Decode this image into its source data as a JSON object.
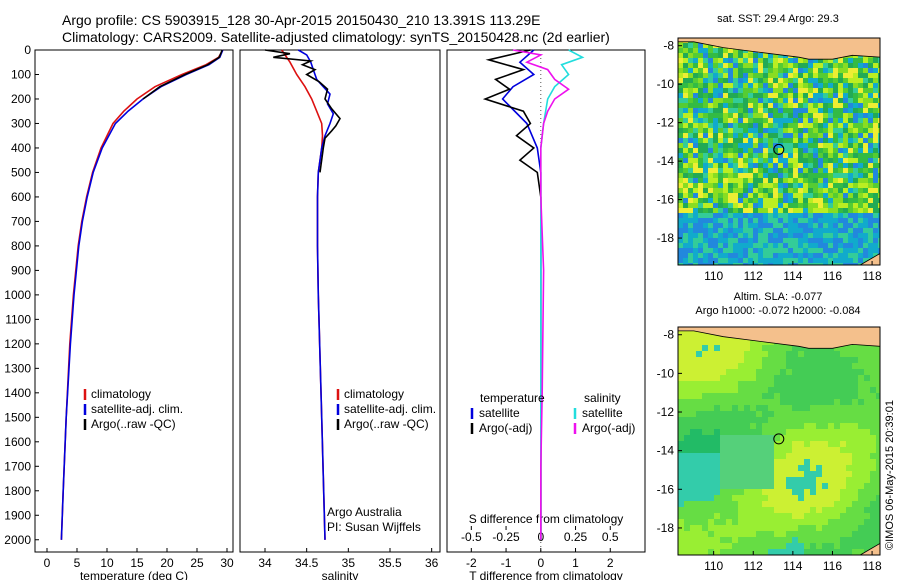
{
  "header": {
    "line1": "Argo profile: CS 5903915_128 30-Apr-2015 20150430_210 13.391S 113.29E",
    "line2": "Climatology: CARS2009. Satellite-adjusted climatology: synTS_20150428.nc (2d earlier)"
  },
  "colors": {
    "climatology": "#dd1111",
    "satellite": "#0000dd",
    "argo": "#000000",
    "satellite_s": "#22dddd",
    "argo_s": "#ee11ee",
    "land": "#f4c08c"
  },
  "chart_data": [
    {
      "type": "line",
      "title": "",
      "xlabel": "temperature (deg C)",
      "ylabel": "",
      "xlim": [
        -2,
        31
      ],
      "ylim": [
        2050,
        0
      ],
      "xticks": [
        0,
        5,
        10,
        15,
        20,
        25,
        30
      ],
      "yticks": [
        0,
        100,
        200,
        300,
        400,
        500,
        600,
        700,
        800,
        900,
        1000,
        1100,
        1200,
        1300,
        1400,
        1500,
        1600,
        1700,
        1800,
        1900,
        2000
      ],
      "legend": [
        "climatology",
        "satellite-adj. clim.",
        "Argo(..raw -QC)"
      ],
      "series": [
        {
          "name": "climatology",
          "depth": [
            0,
            30,
            60,
            100,
            150,
            200,
            250,
            300,
            400,
            500,
            600,
            700,
            800,
            1000,
            1200,
            1500,
            1800,
            2000
          ],
          "values": [
            29.3,
            28.6,
            26.5,
            22.5,
            18,
            15,
            12.8,
            11,
            9,
            7.6,
            6.6,
            5.8,
            5.2,
            4.4,
            3.8,
            3.2,
            2.7,
            2.4
          ]
        },
        {
          "name": "satellite-adj. clim.",
          "depth": [
            0,
            30,
            60,
            100,
            150,
            200,
            250,
            300,
            400,
            500,
            600,
            700,
            800,
            1000,
            1200,
            1500,
            1800,
            2000
          ],
          "values": [
            29.3,
            28.8,
            27,
            23.2,
            19,
            16,
            13.5,
            11.4,
            9.2,
            7.7,
            6.7,
            5.9,
            5.3,
            4.5,
            3.9,
            3.2,
            2.7,
            2.4
          ]
        },
        {
          "name": "Argo(..raw -QC)",
          "depth": [
            0,
            30,
            60,
            100,
            150,
            200
          ],
          "values": [
            29.2,
            28.7,
            26.8,
            23,
            18.8,
            16
          ]
        }
      ]
    },
    {
      "type": "line",
      "xlabel": "salinity",
      "xlim": [
        33.7,
        36.1
      ],
      "ylim": [
        2050,
        0
      ],
      "xticks": [
        34,
        34.5,
        35,
        35.5,
        36
      ],
      "legend": [
        "climatology",
        "satellite-adj. clim.",
        "Argo(..raw -QC)"
      ],
      "annotation": [
        "Argo Australia",
        "PI: Susan Wijffels"
      ],
      "series": [
        {
          "name": "climatology",
          "depth": [
            0,
            50,
            100,
            150,
            200,
            250,
            300,
            350,
            400,
            500,
            600,
            800,
            1000,
            1500,
            2000
          ],
          "values": [
            34.2,
            34.3,
            34.38,
            34.48,
            34.56,
            34.62,
            34.68,
            34.69,
            34.68,
            34.64,
            34.63,
            34.63,
            34.64,
            34.68,
            34.72
          ]
        },
        {
          "name": "satellite-adj. clim.",
          "depth": [
            0,
            20,
            50,
            80,
            120,
            150,
            180,
            220,
            260,
            300,
            350,
            400,
            500,
            600,
            800,
            1000,
            1500,
            2000
          ],
          "values": [
            34.4,
            34.5,
            34.55,
            34.58,
            34.62,
            34.7,
            34.78,
            34.75,
            34.82,
            34.78,
            34.72,
            34.68,
            34.64,
            34.63,
            34.63,
            34.64,
            34.68,
            34.72
          ]
        },
        {
          "name": "Argo(..raw -QC)",
          "depth": [
            0,
            15,
            30,
            45,
            60,
            80,
            100,
            130,
            160,
            200,
            240,
            280,
            310,
            330,
            360,
            400,
            500
          ],
          "values": [
            34.0,
            34.3,
            34.1,
            34.55,
            34.45,
            34.6,
            34.5,
            34.65,
            34.75,
            34.72,
            34.8,
            34.9,
            34.85,
            34.8,
            34.72,
            34.7,
            34.66
          ]
        }
      ]
    },
    {
      "type": "line",
      "xlabel": "T difference from climatology",
      "xlabel_top": "S difference from climatology",
      "xlim": [
        -2.7,
        3.0
      ],
      "ylim": [
        2050,
        0
      ],
      "xticks": [
        -2,
        -1,
        0,
        1,
        2
      ],
      "xticks_s": [
        -0.5,
        -0.25,
        0,
        0.25,
        0.5
      ],
      "legend_groups": {
        "temperature": [
          "satellite",
          "Argo(-adj)"
        ],
        "salinity": [
          "satellite",
          "Argo(-adj)"
        ]
      },
      "series": [
        {
          "name": "T satellite",
          "depth": [
            0,
            50,
            100,
            150,
            200,
            300,
            400,
            500,
            600,
            800,
            1000,
            1500,
            2000
          ],
          "values": [
            -0.2,
            -0.6,
            -0.2,
            -0.8,
            -1.1,
            -0.4,
            -0.1,
            0,
            0,
            0,
            0,
            0,
            0
          ]
        },
        {
          "name": "T Argo(-adj)",
          "depth": [
            0,
            40,
            80,
            120,
            160,
            200,
            250,
            300,
            350,
            400,
            450,
            500,
            600,
            800,
            2000
          ],
          "values": [
            -0.3,
            -1.5,
            -0.5,
            -1.3,
            -0.9,
            -1.6,
            -0.5,
            -0.3,
            -0.7,
            -0.2,
            -0.6,
            -0.1,
            0,
            0,
            0
          ]
        },
        {
          "name": "S satellite",
          "depth": [
            0,
            30,
            60,
            100,
            150,
            200,
            300,
            400,
            600,
            800,
            1000,
            2000
          ],
          "values": [
            0.2,
            0.3,
            0.15,
            0.2,
            0.1,
            0.05,
            0.02,
            0,
            0,
            0,
            0,
            0
          ]
        },
        {
          "name": "S Argo(-adj)",
          "depth": [
            0,
            20,
            50,
            80,
            120,
            160,
            200,
            250,
            300,
            400,
            600,
            900,
            1400,
            1700,
            2000
          ],
          "values": [
            -0.2,
            0.0,
            -0.1,
            0.05,
            0.1,
            0.2,
            0.1,
            0.05,
            0.02,
            0,
            0,
            0.02,
            0.01,
            0,
            0
          ]
        }
      ]
    },
    {
      "type": "heatmap",
      "title": "sat. SST: 29.4  Argo: 29.3",
      "xlim": [
        108.2,
        118.4
      ],
      "ylim": [
        -19.4,
        -7.6
      ],
      "xticks": [
        110,
        112,
        114,
        116,
        118
      ],
      "yticks": [
        -8,
        -10,
        -12,
        -14,
        -16,
        -18
      ],
      "marker": {
        "lon": 113.29,
        "lat": -13.391
      }
    },
    {
      "type": "heatmap",
      "title": "Altim. SLA: -0.077",
      "subtitle": "Argo h1000: -0.072  h2000: -0.084",
      "xlim": [
        108.2,
        118.4
      ],
      "ylim": [
        -19.4,
        -7.6
      ],
      "xticks": [
        110,
        112,
        114,
        116,
        118
      ],
      "yticks": [
        -8,
        -10,
        -12,
        -14,
        -16,
        -18
      ],
      "marker": {
        "lon": 113.29,
        "lat": -13.391
      }
    }
  ],
  "footer": {
    "stamp": "©IMOS 06-May-2015 20:39:01"
  }
}
